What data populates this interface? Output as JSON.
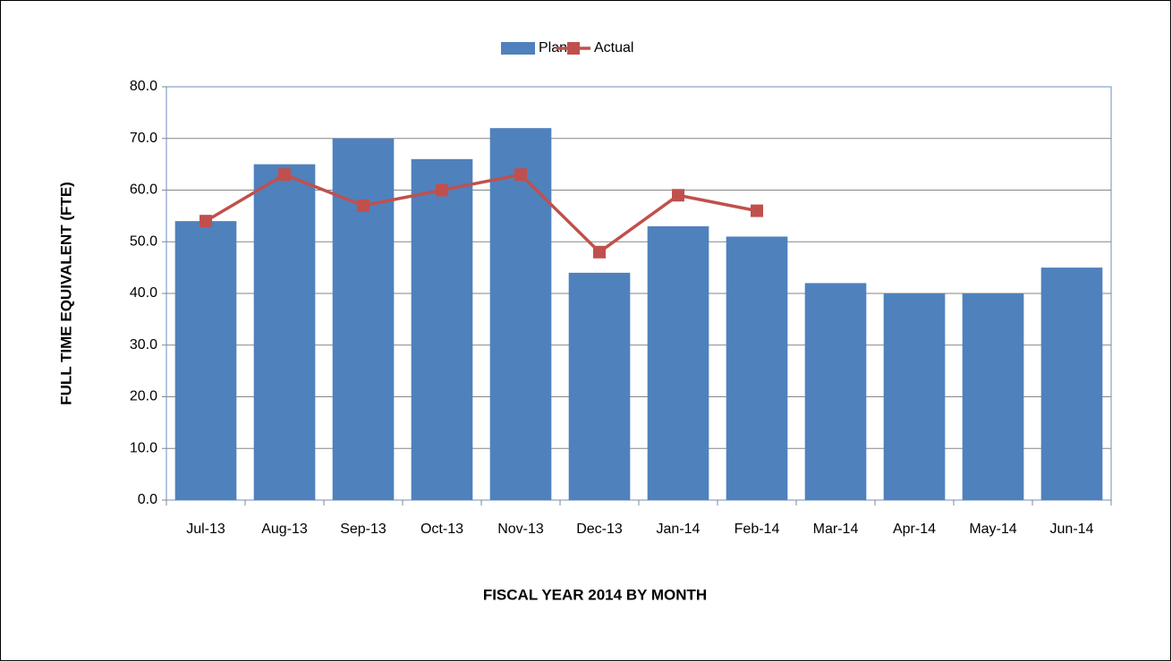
{
  "chart_data": {
    "type": "combo",
    "categories": [
      "Jul-13",
      "Aug-13",
      "Sep-13",
      "Oct-13",
      "Nov-13",
      "Dec-13",
      "Jan-14",
      "Feb-14",
      "Mar-14",
      "Apr-14",
      "May-14",
      "Jun-14"
    ],
    "series": [
      {
        "name": "Plan",
        "type": "bar",
        "color": "#4f81bd",
        "values": [
          54,
          65,
          70,
          66,
          72,
          44,
          53,
          51,
          42,
          40,
          40,
          45
        ]
      },
      {
        "name": "Actual",
        "type": "line",
        "color": "#c0504d",
        "values": [
          54,
          63,
          57,
          60,
          63,
          48,
          59,
          56,
          null,
          null,
          null,
          null
        ]
      }
    ],
    "x_label": "FISCAL YEAR 2014 BY MONTH",
    "y_label": "FULL TIME EQUIVALENT (FTE)",
    "ylim": [
      0,
      80
    ],
    "yticks": [
      {
        "value": 0,
        "label": "0.0"
      },
      {
        "value": 10,
        "label": "10.0"
      },
      {
        "value": 20,
        "label": "20.0"
      },
      {
        "value": 30,
        "label": "30.0"
      },
      {
        "value": 40,
        "label": "40.0"
      },
      {
        "value": 50,
        "label": "50.0"
      },
      {
        "value": 60,
        "label": "60.0"
      },
      {
        "value": 70,
        "label": "70.0"
      },
      {
        "value": 80,
        "label": "80.0"
      }
    ],
    "grid": true,
    "legend": "top"
  }
}
